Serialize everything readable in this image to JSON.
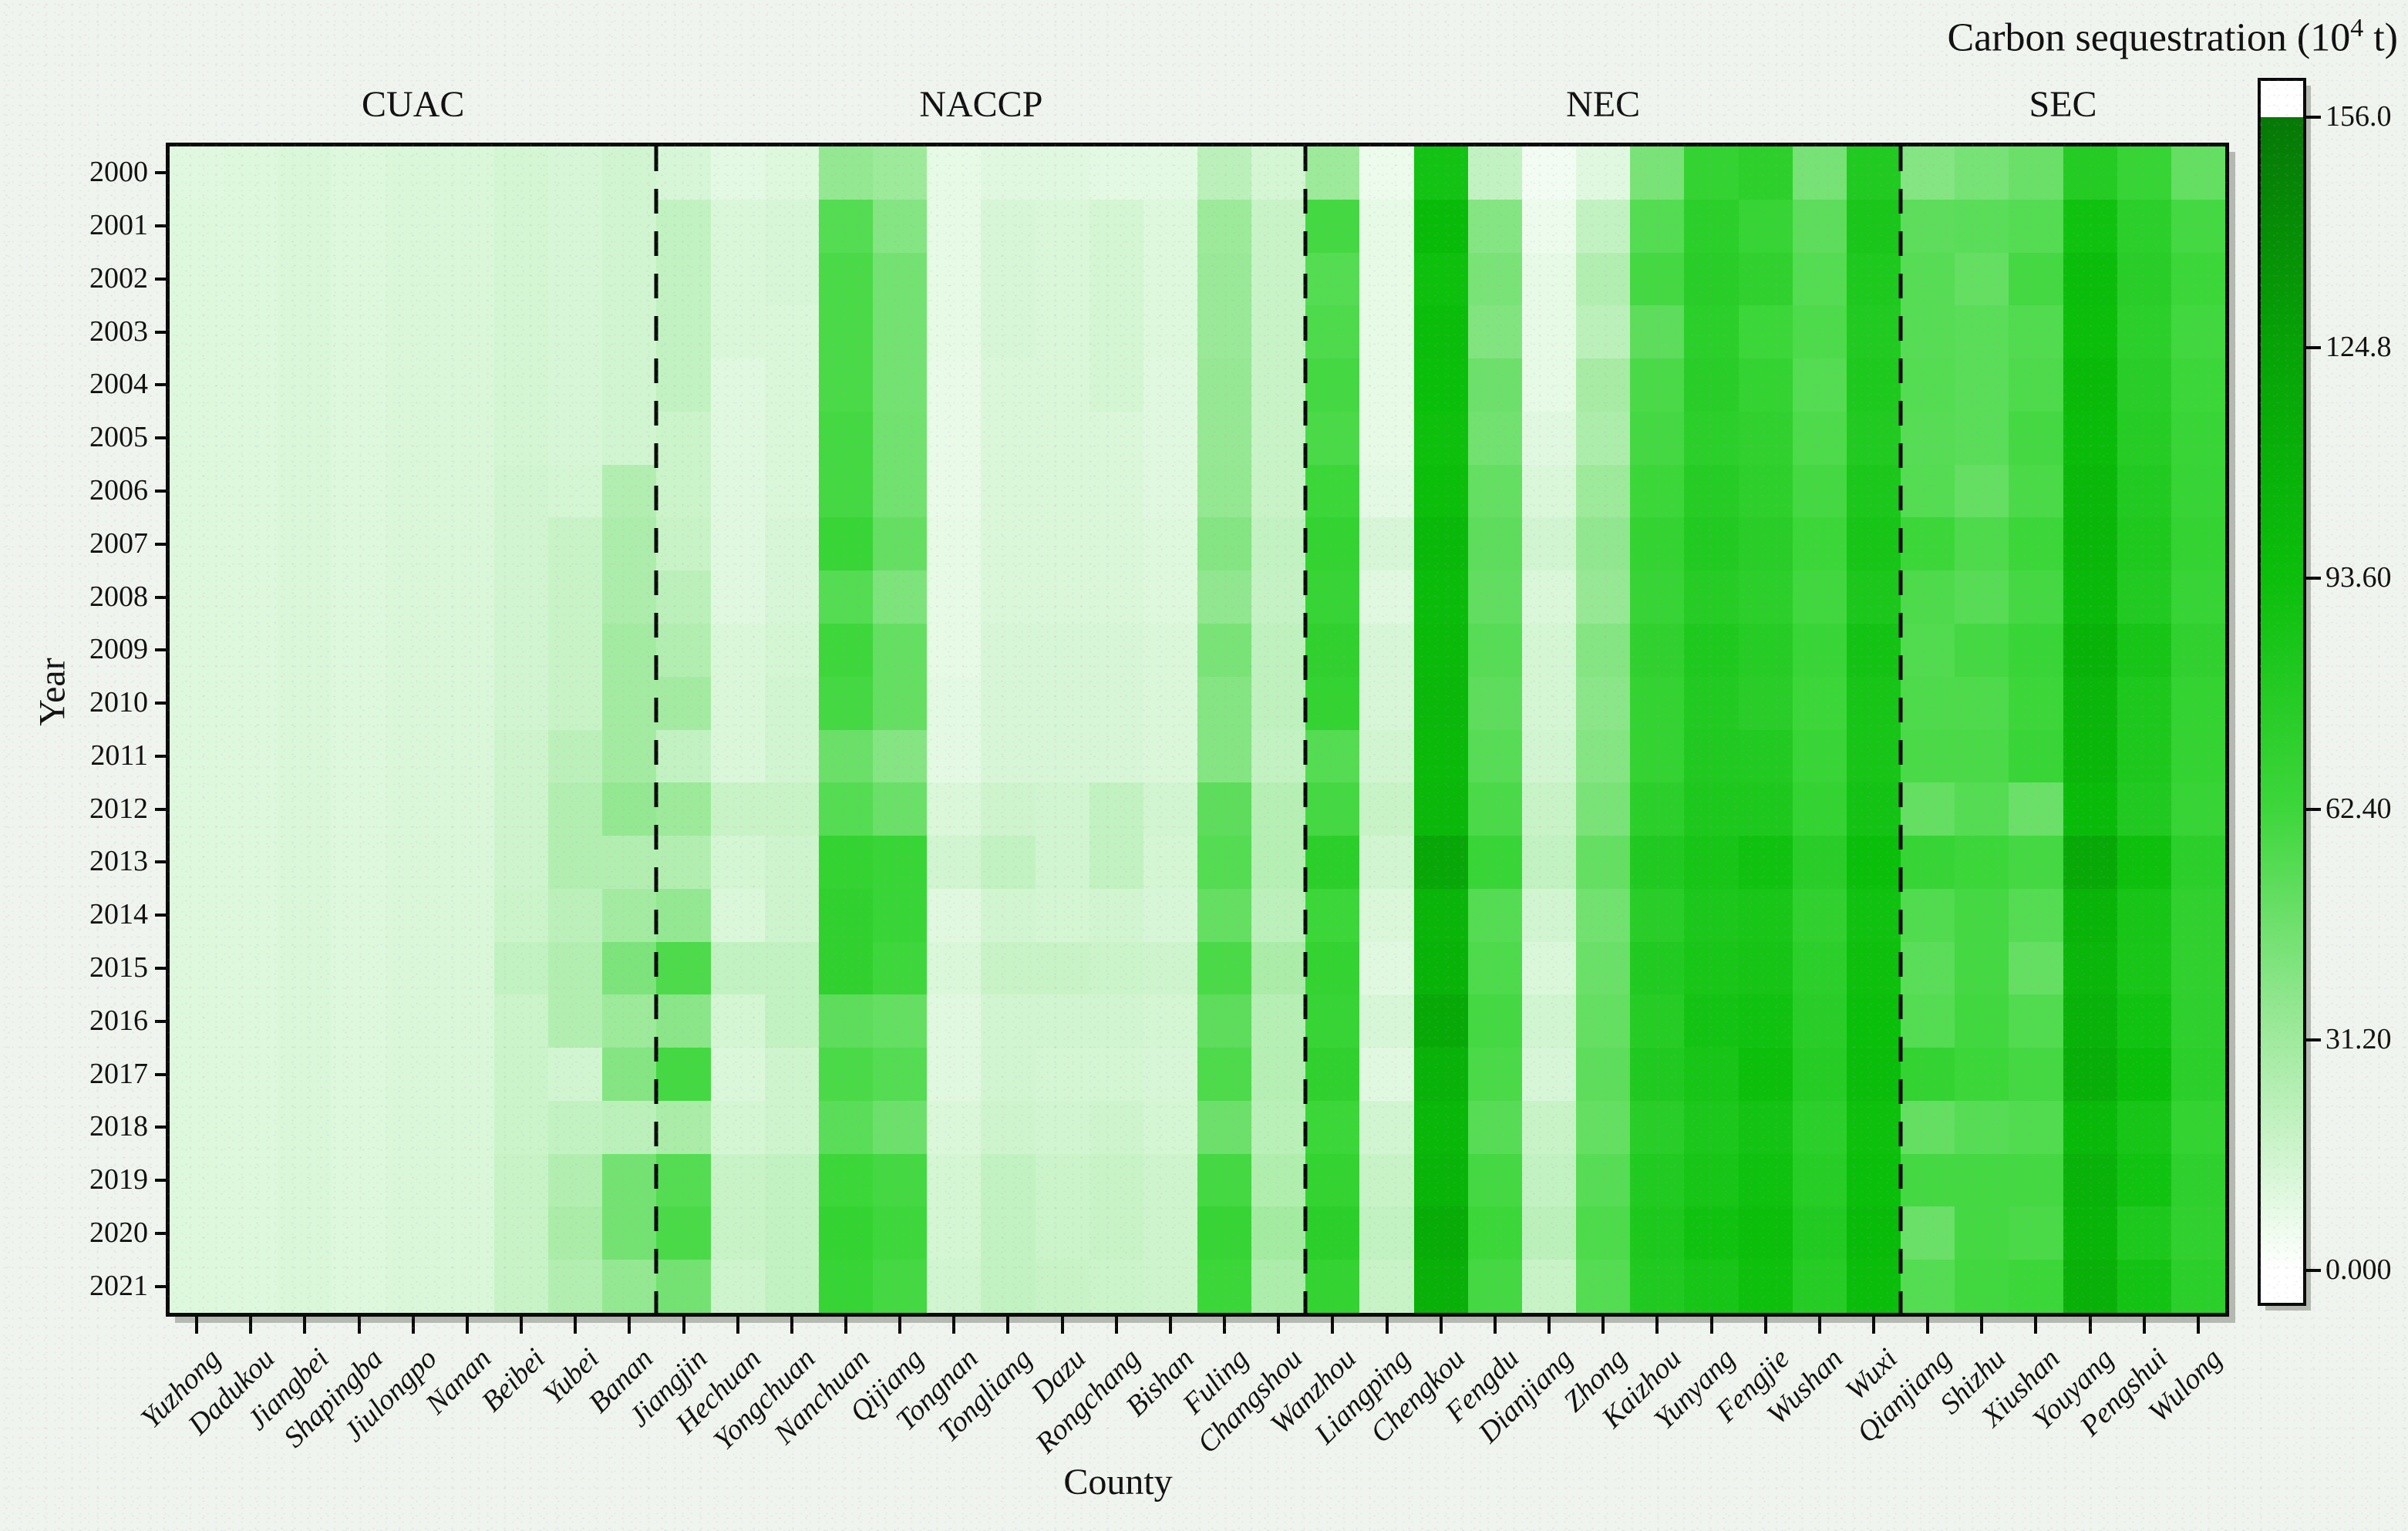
{
  "chart_data": {
    "type": "heatmap",
    "xlabel": "County",
    "ylabel": "Year",
    "years": [
      "2000",
      "2001",
      "2002",
      "2003",
      "2004",
      "2005",
      "2006",
      "2007",
      "2008",
      "2009",
      "2010",
      "2011",
      "2012",
      "2013",
      "2014",
      "2015",
      "2016",
      "2017",
      "2018",
      "2019",
      "2020",
      "2021"
    ],
    "counties": [
      "Yuzhong",
      "Dadukou",
      "Jiangbei",
      "Shapingba",
      "Jiulongpo",
      "Nanan",
      "Beibei",
      "Yubei",
      "Banan",
      "Jiangjin",
      "Hechuan",
      "Yongchuan",
      "Nanchuan",
      "Qijiang",
      "Tongnan",
      "Tongliang",
      "Dazu",
      "Rongchang",
      "Bishan",
      "Fuling",
      "Changshou",
      "Wanzhou",
      "Liangping",
      "Chengkou",
      "Fengdu",
      "Dianjiang",
      "Zhong",
      "Kaizhou",
      "Yunyang",
      "Fengjie",
      "Wushan",
      "Wuxi",
      "Qianjiang",
      "Shizhu",
      "Xiushan",
      "Youyang",
      "Pengshui",
      "Wulong"
    ],
    "groups": [
      {
        "label": "CUAC",
        "start": 0,
        "count": 9
      },
      {
        "label": "NACCP",
        "start": 9,
        "count": 12
      },
      {
        "label": "NEC",
        "start": 21,
        "count": 11
      },
      {
        "label": "SEC",
        "start": 32,
        "count": 6
      }
    ],
    "separators_after_index": [
      8,
      20,
      31
    ],
    "values": [
      [
        10,
        11,
        12,
        11,
        12,
        12,
        14,
        13,
        15,
        13,
        9,
        11,
        35,
        32,
        8,
        10,
        10,
        9,
        9,
        22,
        14,
        32,
        6,
        88,
        20,
        4,
        10,
        43,
        68,
        72,
        44,
        79,
        40,
        44,
        48,
        78,
        66,
        50
      ],
      [
        11,
        11,
        12,
        11,
        12,
        12,
        14,
        13,
        15,
        20,
        12,
        13,
        55,
        40,
        8,
        13,
        12,
        14,
        11,
        32,
        18,
        60,
        8,
        98,
        40,
        6,
        20,
        55,
        73,
        66,
        52,
        84,
        52,
        53,
        55,
        90,
        73,
        60
      ],
      [
        11,
        11,
        12,
        11,
        12,
        12,
        14,
        13,
        15,
        20,
        12,
        13,
        58,
        45,
        8,
        13,
        12,
        14,
        11,
        33,
        18,
        55,
        8,
        92,
        43,
        8,
        25,
        60,
        75,
        70,
        55,
        81,
        54,
        50,
        60,
        96,
        75,
        63
      ],
      [
        11,
        11,
        12,
        11,
        12,
        12,
        14,
        13,
        15,
        20,
        12,
        12,
        58,
        45,
        8,
        13,
        12,
        14,
        11,
        33,
        18,
        57,
        8,
        96,
        41,
        8,
        22,
        52,
        73,
        63,
        57,
        79,
        54,
        53,
        56,
        95,
        73,
        61
      ],
      [
        11,
        11,
        12,
        11,
        12,
        12,
        14,
        13,
        15,
        20,
        10,
        12,
        58,
        45,
        7,
        12,
        12,
        14,
        10,
        34,
        18,
        60,
        8,
        94,
        47,
        8,
        29,
        58,
        75,
        68,
        55,
        81,
        55,
        53,
        57,
        99,
        75,
        63
      ],
      [
        11,
        11,
        12,
        11,
        12,
        12,
        14,
        13,
        15,
        17,
        10,
        12,
        60,
        46,
        7,
        12,
        12,
        12,
        10,
        34,
        18,
        58,
        8,
        92,
        46,
        10,
        27,
        60,
        73,
        70,
        57,
        79,
        54,
        53,
        60,
        97,
        77,
        65
      ],
      [
        11,
        11,
        12,
        11,
        12,
        12,
        15,
        14,
        25,
        17,
        10,
        12,
        60,
        46,
        7,
        12,
        12,
        12,
        10,
        35,
        18,
        63,
        9,
        95,
        50,
        12,
        32,
        63,
        77,
        72,
        60,
        83,
        55,
        50,
        58,
        101,
        79,
        66
      ],
      [
        11,
        11,
        12,
        11,
        12,
        12,
        15,
        18,
        27,
        18,
        10,
        13,
        65,
        50,
        8,
        12,
        12,
        12,
        11,
        40,
        20,
        68,
        13,
        100,
        52,
        15,
        36,
        68,
        79,
        75,
        63,
        86,
        63,
        57,
        63,
        103,
        81,
        68
      ],
      [
        11,
        11,
        12,
        11,
        12,
        12,
        15,
        18,
        27,
        22,
        10,
        13,
        55,
        42,
        8,
        12,
        12,
        12,
        11,
        36,
        19,
        66,
        10,
        97,
        51,
        12,
        34,
        66,
        77,
        73,
        61,
        83,
        57,
        54,
        60,
        100,
        79,
        66
      ],
      [
        11,
        11,
        12,
        11,
        12,
        12,
        15,
        18,
        30,
        25,
        12,
        14,
        62,
        50,
        8,
        13,
        13,
        13,
        12,
        43,
        21,
        70,
        13,
        99,
        54,
        14,
        40,
        70,
        81,
        77,
        65,
        88,
        56,
        60,
        65,
        107,
        86,
        70
      ],
      [
        11,
        11,
        12,
        11,
        12,
        12,
        15,
        18,
        30,
        30,
        12,
        15,
        60,
        50,
        9,
        13,
        13,
        13,
        12,
        40,
        21,
        68,
        13,
        101,
        52,
        14,
        38,
        68,
        79,
        75,
        63,
        86,
        57,
        57,
        63,
        104,
        82,
        68
      ],
      [
        11,
        11,
        12,
        11,
        12,
        12,
        16,
        22,
        30,
        20,
        12,
        15,
        48,
        40,
        9,
        13,
        13,
        13,
        12,
        40,
        20,
        55,
        15,
        99,
        54,
        15,
        40,
        68,
        80,
        79,
        65,
        86,
        58,
        58,
        65,
        103,
        82,
        68
      ],
      [
        11,
        11,
        12,
        11,
        12,
        12,
        16,
        25,
        35,
        32,
        18,
        18,
        55,
        48,
        12,
        16,
        15,
        20,
        15,
        52,
        24,
        60,
        18,
        101,
        58,
        18,
        43,
        73,
        82,
        82,
        68,
        88,
        50,
        55,
        48,
        98,
        80,
        66
      ],
      [
        11,
        11,
        12,
        11,
        12,
        12,
        16,
        25,
        25,
        25,
        14,
        16,
        68,
        65,
        15,
        20,
        15,
        20,
        14,
        55,
        24,
        73,
        15,
        120,
        65,
        20,
        50,
        80,
        86,
        90,
        75,
        94,
        66,
        63,
        60,
        118,
        92,
        73
      ],
      [
        11,
        11,
        12,
        11,
        12,
        12,
        17,
        22,
        30,
        35,
        12,
        16,
        70,
        65,
        10,
        15,
        14,
        15,
        13,
        50,
        22,
        63,
        12,
        105,
        55,
        15,
        46,
        75,
        83,
        85,
        70,
        90,
        56,
        60,
        55,
        106,
        86,
        70
      ],
      [
        11,
        11,
        12,
        11,
        12,
        12,
        20,
        25,
        42,
        57,
        20,
        20,
        70,
        62,
        12,
        18,
        18,
        17,
        16,
        58,
        28,
        68,
        10,
        107,
        57,
        12,
        48,
        79,
        85,
        87,
        73,
        92,
        53,
        60,
        50,
        104,
        85,
        70
      ],
      [
        11,
        11,
        12,
        11,
        12,
        12,
        17,
        25,
        32,
        38,
        14,
        20,
        52,
        50,
        10,
        15,
        15,
        15,
        14,
        52,
        24,
        66,
        13,
        118,
        60,
        15,
        50,
        77,
        88,
        90,
        75,
        94,
        55,
        61,
        56,
        108,
        89,
        71
      ],
      [
        11,
        11,
        12,
        11,
        12,
        12,
        17,
        15,
        40,
        60,
        12,
        16,
        58,
        55,
        10,
        15,
        14,
        14,
        13,
        57,
        24,
        70,
        10,
        108,
        58,
        13,
        52,
        80,
        86,
        93,
        77,
        96,
        68,
        63,
        60,
        112,
        94,
        73
      ],
      [
        11,
        11,
        12,
        11,
        12,
        12,
        17,
        20,
        22,
        28,
        14,
        16,
        53,
        47,
        12,
        16,
        15,
        16,
        14,
        47,
        23,
        63,
        15,
        102,
        54,
        18,
        50,
        75,
        83,
        88,
        73,
        92,
        50,
        54,
        56,
        100,
        86,
        68
      ],
      [
        11,
        11,
        12,
        11,
        12,
        12,
        18,
        25,
        45,
        55,
        18,
        20,
        63,
        60,
        14,
        20,
        17,
        18,
        16,
        60,
        26,
        68,
        18,
        106,
        60,
        20,
        54,
        79,
        86,
        91,
        76,
        94,
        60,
        60,
        60,
        108,
        89,
        71
      ],
      [
        11,
        11,
        12,
        11,
        12,
        12,
        18,
        28,
        45,
        58,
        18,
        20,
        68,
        62,
        14,
        20,
        17,
        18,
        16,
        66,
        30,
        73,
        20,
        115,
        63,
        22,
        57,
        82,
        90,
        95,
        79,
        98,
        48,
        60,
        58,
        106,
        82,
        70
      ],
      [
        11,
        11,
        12,
        11,
        12,
        12,
        18,
        25,
        35,
        45,
        16,
        20,
        66,
        60,
        15,
        20,
        18,
        17,
        16,
        63,
        27,
        68,
        18,
        110,
        60,
        18,
        55,
        80,
        86,
        92,
        77,
        96,
        55,
        61,
        63,
        110,
        88,
        73
      ]
    ],
    "colorbar": {
      "title_main": "Carbon sequestration (10",
      "title_sup": "4",
      "title_tail": " t)",
      "tick_labels": [
        "156.0",
        "124.8",
        "93.60",
        "62.40",
        "31.20",
        "0.000"
      ],
      "tick_values": [
        156.0,
        124.8,
        93.6,
        62.4,
        31.2,
        0.0
      ],
      "min": 0,
      "max": 156
    },
    "colormap_stops": [
      {
        "v": 0.0,
        "c": "#ffffff"
      },
      {
        "v": 31.2,
        "c": "#a0ea9e"
      },
      {
        "v": 62.4,
        "c": "#3cd73a"
      },
      {
        "v": 93.6,
        "c": "#0abf0a"
      },
      {
        "v": 124.8,
        "c": "#06a306"
      },
      {
        "v": 156.0,
        "c": "#067806"
      }
    ],
    "axis_color": "#0a0a0a",
    "legend_position": "right"
  }
}
